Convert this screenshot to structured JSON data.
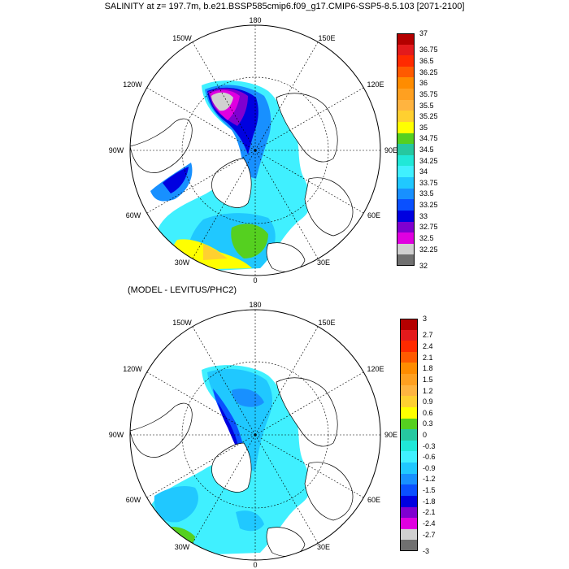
{
  "panel1": {
    "title": "SALINITY at z= 197.7m, b.e21.BSSP585cmip6.f09_g17.CMIP6-SSP5-8.5.103 [2071-2100]",
    "lon_labels": {
      "top": "180",
      "tl": "150W",
      "tr": "150E",
      "ul": "120W",
      "ur": "120E",
      "l": "90W",
      "r": "90E",
      "ll": "60W",
      "lr": "60E",
      "bl": "30W",
      "br": "30E",
      "bottom": "0"
    },
    "colorbar": {
      "labels": [
        "37",
        "36.75",
        "36.5",
        "36.25",
        "36",
        "35.75",
        "35.5",
        "35.25",
        "35",
        "34.75",
        "34.5",
        "34.25",
        "34",
        "33.75",
        "33.5",
        "33.25",
        "33",
        "32.75",
        "32.5",
        "32.25",
        "32"
      ],
      "colors": [
        "#b40000",
        "#e31a1c",
        "#ff2a00",
        "#ff5a00",
        "#ff8c00",
        "#ffa020",
        "#ffb440",
        "#ffd030",
        "#ffff00",
        "#55d020",
        "#26c8a0",
        "#20e8d8",
        "#40f0ff",
        "#20c8ff",
        "#1890ff",
        "#0a50ff",
        "#0000e0",
        "#8000d0",
        "#e000e0",
        "#d0d0d0",
        "#707070"
      ]
    }
  },
  "panel2": {
    "title": "(MODEL - LEVITUS/PHC2)",
    "lon_labels": {
      "top": "180",
      "tl": "150W",
      "tr": "150E",
      "ul": "120W",
      "ur": "120E",
      "l": "90W",
      "r": "90E",
      "ll": "60W",
      "lr": "60E",
      "bl": "30W",
      "br": "30E",
      "bottom": "0"
    },
    "colorbar": {
      "labels": [
        "3",
        "2.7",
        "2.4",
        "2.1",
        "1.8",
        "1.5",
        "1.2",
        "0.9",
        "0.6",
        "0.3",
        "0",
        "-0.3",
        "-0.6",
        "-0.9",
        "-1.2",
        "-1.5",
        "-1.8",
        "-2.1",
        "-2.4",
        "-2.7",
        "-3"
      ],
      "colors": [
        "#b40000",
        "#e31a1c",
        "#ff2a00",
        "#ff5a00",
        "#ff8c00",
        "#ffa020",
        "#ffb440",
        "#ffd030",
        "#ffff00",
        "#55d020",
        "#26c8a0",
        "#20e8d8",
        "#40f0ff",
        "#20c8ff",
        "#1890ff",
        "#0a50ff",
        "#0000e0",
        "#8000d0",
        "#e000e0",
        "#d0d0d0",
        "#707070"
      ]
    }
  }
}
